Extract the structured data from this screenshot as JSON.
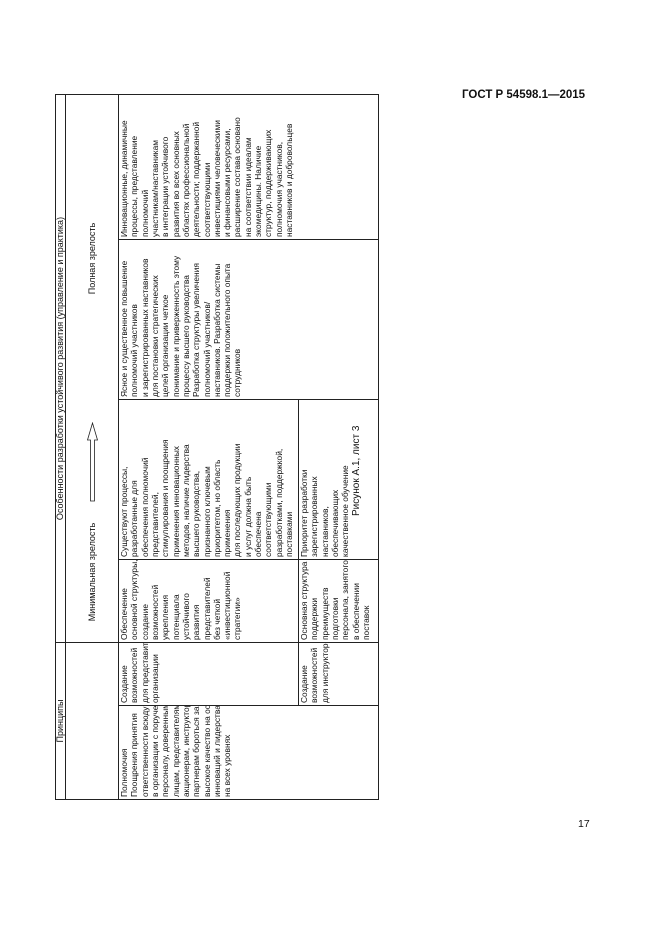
{
  "header": {
    "doc_code": "ГОСТ Р 54598.1—2015"
  },
  "table": {
    "head": {
      "principles": "Принципы",
      "features": "Особенности разработки устойчивого развития (управление и практика)",
      "min_maturity": "Минимальная зрелость",
      "full_maturity": "Полная зрелость"
    },
    "principle": "Полномочия\nПоощрения принятия\nответственности всюду\nв организации с поручением\nперсоналу, доверенным\nлицам, представителям,\nакционерам, инструкторам,\nпартнерам бороться за\nвысокое качество на основе\nинноваций и лидерства\nна всех уровнях",
    "rows": [
      {
        "sub": "Создание\nвозможностей\nдля представителей\nорганизации",
        "min": "Обеспечение\nосновной структуры,\nсоздание\nвозможностей\nукрепления\nпотенциала\nустойчивого\nразвития\nпредставителей\nбез четкой\n«инвестиционной\nстратегии»",
        "mid": "Существуют процессы,\nразработанные для\nобеспечения полномочий\nпредставителей,\nстимулирования и поощрения\nприменения инновационных\nметодов, наличие лидерства\nвысшего руководства,\nпризнанного ключевым\nприоритетом, но область\nприменения\nдля последующих продукции\nи услуг должна быть\nобеспечена\nсоответствующими\nразработками, поддержкой,\nпоставками"
      },
      {
        "sub": "Создание\nвозможностей\nдля инструкторов",
        "min": "Основная структура\nподдержки\nпреимуществ\nподготовки\nперсонала, занятого\nв обеспечении\nпоставок",
        "mid": "Приоритет разработки\nзарегистрированных\nнаставников,\nобеспечивающих\nкачественное обучение"
      }
    ],
    "high": "Ясное и существенное повышение\nполномочий участников\nи зарегистрированных наставников\nдля постановки стратегических\nцелей организации четкое\nпонимание и приверженность этому\nпроцессу высшего руководства\nРазработка структуры увеличения\nполномочий участников/\nнаставников. Разработка системы\nподдержки положительного опыта\nсотрудников",
    "full": "Инновационные, динамичные\nпроцессы, представление\nполномочий\nучастникам/наставникам\nв интеграции устойчивого\nразвития во всех основных\nобластях профессиональной\nдеятельности; поддержанной\nсоответствующими\nинвестициями человеческими\nи финансовыми ресурсами,\nрасширение состава основано\nна соответствии идеалам\nэкомедицины. Наличие\nструктур, поддерживающих\nполномочия участников,\nнаставников и добровольцев"
  },
  "caption": "Рисунок А.1, лист 3",
  "page_number": "17"
}
